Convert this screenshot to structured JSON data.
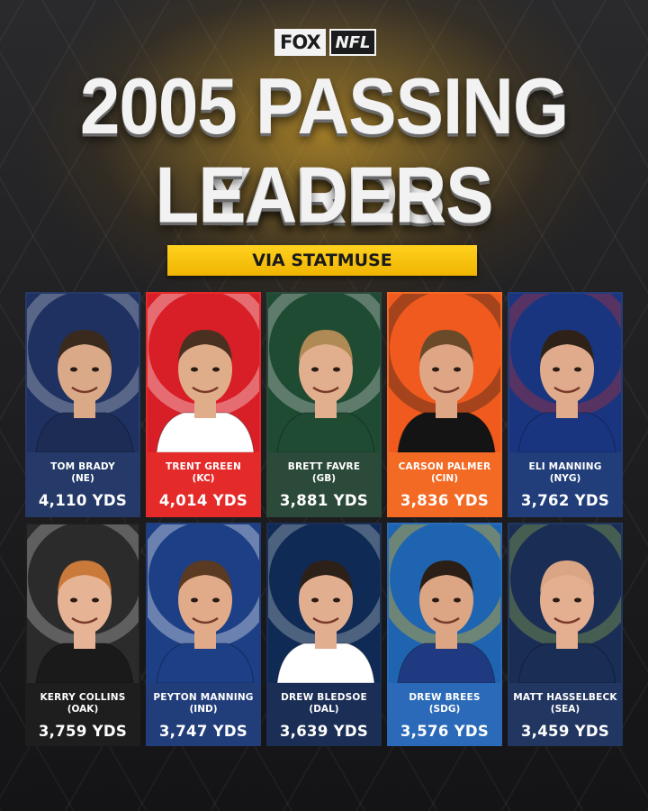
{
  "logo": {
    "fox": "FOX",
    "nfl": "NFL"
  },
  "title": {
    "line1": "2005 PASSING YARDS",
    "line2": "LEADERS"
  },
  "source": "VIA STATMUSE",
  "players": [
    {
      "name": "TOM BRADY",
      "team": "(NE)",
      "yards": "4,110 YDS",
      "bg": "#1e3160",
      "info": "#253a68",
      "accent": "#c8ccd4",
      "skin": "#d9a988",
      "hair": "#3a2a1e",
      "jersey": "#1d2c55"
    },
    {
      "name": "TRENT GREEN",
      "team": "(KC)",
      "yards": "4,014 YDS",
      "bg": "#d81e26",
      "info": "#e52a2a",
      "accent": "#ffffff",
      "skin": "#e0ad8a",
      "hair": "#4a3020",
      "jersey": "#ffffff"
    },
    {
      "name": "BRETT FAVRE",
      "team": "(GB)",
      "yards": "3,881 YDS",
      "bg": "#1f4b33",
      "info": "#2b4a3a",
      "accent": "#d8d8d8",
      "skin": "#e1ae8e",
      "hair": "#b08a55",
      "jersey": "#1f4b33"
    },
    {
      "name": "CARSON PALMER",
      "team": "(CIN)",
      "yards": "3,836 YDS",
      "bg": "#f05a1e",
      "info": "#f36a25",
      "accent": "#1a1a1a",
      "skin": "#dfa686",
      "hair": "#6b4a2a",
      "jersey": "#141414"
    },
    {
      "name": "ELI MANNING",
      "team": "(NYG)",
      "yards": "3,762 YDS",
      "bg": "#1a3580",
      "info": "#223e7a",
      "accent": "#c9302c",
      "skin": "#e0ab8c",
      "hair": "#2e2218",
      "jersey": "#1a3580"
    },
    {
      "name": "KERRY COLLINS",
      "team": "(OAK)",
      "yards": "3,759 YDS",
      "bg": "#2b2b2b",
      "info": "#1e1e1e",
      "accent": "#c0c0c0",
      "skin": "#e6b394",
      "hair": "#c9793a",
      "jersey": "#1a1a1a"
    },
    {
      "name": "PEYTON MANNING",
      "team": "(IND)",
      "yards": "3,747 YDS",
      "bg": "#1d3f86",
      "info": "#223e7a",
      "accent": "#ffffff",
      "skin": "#e1ab8a",
      "hair": "#5a3a22",
      "jersey": "#1d3f86"
    },
    {
      "name": "DREW BLEDSOE",
      "team": "(DAL)",
      "yards": "3,639 YDS",
      "bg": "#0f2b55",
      "info": "#1b2e55",
      "accent": "#c4c8cc",
      "skin": "#e2ae90",
      "hair": "#2c2018",
      "jersey": "#ffffff"
    },
    {
      "name": "DREW BREES",
      "team": "(SDG)",
      "yards": "3,576 YDS",
      "bg": "#1f64b0",
      "info": "#2a6ab8",
      "accent": "#ffc20e",
      "skin": "#dca584",
      "hair": "#2a1e16",
      "jersey": "#1f3a80"
    },
    {
      "name": "MATT HASSELBECK",
      "team": "(SEA)",
      "yards": "3,459 YDS",
      "bg": "#1a2d55",
      "info": "#213660",
      "accent": "#9ab84a",
      "skin": "#e4ae90",
      "hair": "#d9a584",
      "jersey": "#1a2d55"
    }
  ]
}
